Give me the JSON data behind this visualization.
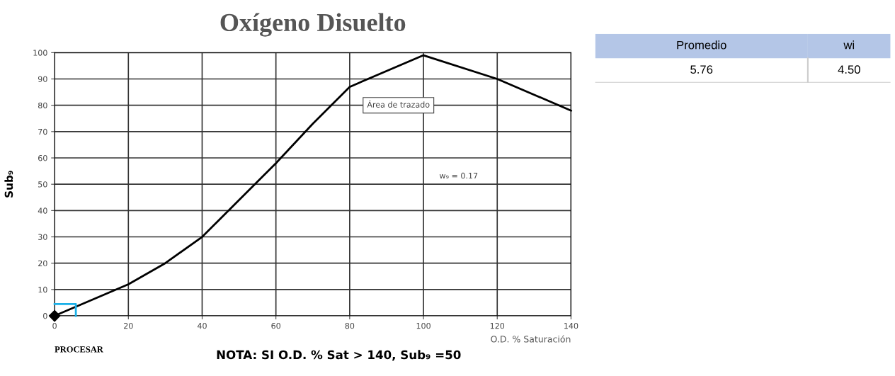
{
  "chart_data": [
    {
      "type": "line",
      "title": "Oxígeno Disuelto",
      "xlabel": "O.D. % Saturación",
      "ylabel": "Sub₉",
      "xlim": [
        0,
        140
      ],
      "xticks": [
        0,
        20,
        40,
        60,
        80,
        100,
        120,
        140
      ],
      "ylim": [
        0,
        100
      ],
      "yticks": [
        0,
        10,
        20,
        30,
        40,
        50,
        60,
        70,
        80,
        90,
        100
      ],
      "grid": true,
      "series": [
        {
          "type": "line",
          "color": "#000000",
          "x": [
            0,
            10,
            20,
            30,
            40,
            50,
            60,
            70,
            80,
            100,
            120,
            140
          ],
          "values": [
            0,
            6,
            12,
            20,
            30,
            44,
            58,
            73,
            87,
            99,
            90,
            78
          ]
        },
        {
          "type": "line",
          "color": "#1ab0e8",
          "x": [
            0,
            5.76,
            5.76
          ],
          "values": [
            4.5,
            4.5,
            0
          ]
        },
        {
          "type": "scatter",
          "color": "#000000",
          "marker": "diamond",
          "x": [
            0
          ],
          "values": [
            0
          ]
        }
      ],
      "annotations": [
        "Área de trazado",
        "w₉ = 0.17",
        "PROCESAR",
        "NOTA: SI O.D. % Sat > 140, Sub₉ =50"
      ]
    },
    {
      "type": "other",
      "annotations": [
        "Promedio",
        "wi",
        "5.76",
        "4.50"
      ],
      "color": "#b4c6e7"
    }
  ]
}
